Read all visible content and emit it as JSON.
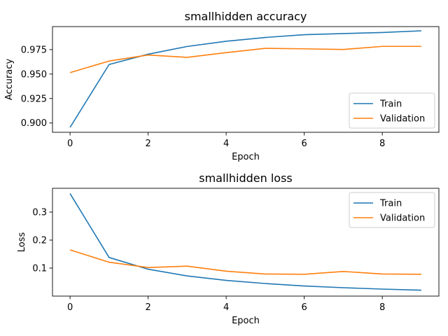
{
  "chart_data": [
    {
      "type": "line",
      "title": "smallhidden accuracy",
      "xlabel": "Epoch",
      "ylabel": "Accuracy",
      "x": [
        0,
        1,
        2,
        3,
        4,
        5,
        6,
        7,
        8,
        9
      ],
      "xticks": [
        0,
        2,
        4,
        6,
        8
      ],
      "xlim": [
        -0.45,
        9.45
      ],
      "ylim": [
        0.8905,
        0.9985
      ],
      "yticks": [
        0.9,
        0.925,
        0.95,
        0.975
      ],
      "ytick_labels": [
        "0.900",
        "0.925",
        "0.950",
        "0.975"
      ],
      "xtick_labels": [
        "0",
        "2",
        "4",
        "6",
        "8"
      ],
      "grid": false,
      "legend_position": "lower-right",
      "series": [
        {
          "name": "Train",
          "color": "#1f77b4",
          "values": [
            0.8955,
            0.9598,
            0.9703,
            0.9782,
            0.9835,
            0.9874,
            0.9902,
            0.9914,
            0.9925,
            0.9942
          ]
        },
        {
          "name": "Validation",
          "color": "#ff7f0e",
          "values": [
            0.9515,
            0.9633,
            0.9695,
            0.9671,
            0.9719,
            0.9763,
            0.9758,
            0.9751,
            0.9783,
            0.9783
          ]
        }
      ]
    },
    {
      "type": "line",
      "title": "smallhidden loss",
      "xlabel": "Epoch",
      "ylabel": "Loss",
      "x": [
        0,
        1,
        2,
        3,
        4,
        5,
        6,
        7,
        8,
        9
      ],
      "xticks": [
        0,
        2,
        4,
        6,
        8
      ],
      "xlim": [
        -0.45,
        9.45
      ],
      "ylim": [
        0.0,
        0.385
      ],
      "yticks": [
        0.1,
        0.2,
        0.3
      ],
      "ytick_labels": [
        "0.1",
        "0.2",
        "0.3"
      ],
      "xtick_labels": [
        "0",
        "2",
        "4",
        "6",
        "8"
      ],
      "grid": false,
      "legend_position": "upper-right",
      "series": [
        {
          "name": "Train",
          "color": "#1f77b4",
          "values": [
            0.366,
            0.138,
            0.096,
            0.072,
            0.056,
            0.045,
            0.036,
            0.03,
            0.025,
            0.021
          ]
        },
        {
          "name": "Validation",
          "color": "#ff7f0e",
          "values": [
            0.165,
            0.121,
            0.102,
            0.107,
            0.089,
            0.079,
            0.078,
            0.088,
            0.079,
            0.078
          ]
        }
      ]
    }
  ]
}
